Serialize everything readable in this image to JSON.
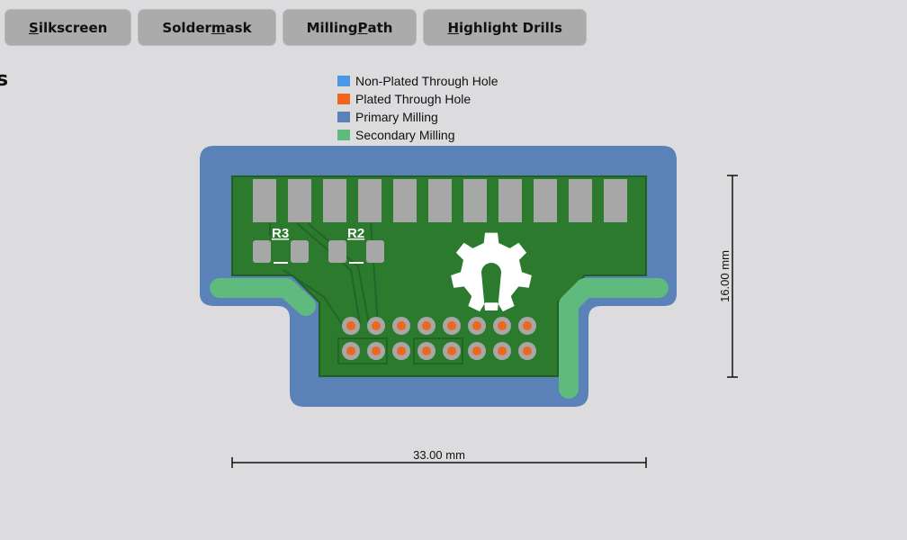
{
  "toolbar": {
    "buttons": [
      {
        "id": "silkscreen",
        "pre": "",
        "ul": "S",
        "post": "ilkscreen"
      },
      {
        "id": "soldermask",
        "pre": "Solder",
        "ul": "m",
        "post": "ask"
      },
      {
        "id": "milling",
        "pre": "Milling ",
        "ul": "P",
        "post": "ath"
      },
      {
        "id": "drills",
        "pre": "",
        "ul": "H",
        "post": "ighlight Drills"
      }
    ]
  },
  "side_title": "s",
  "legend": [
    {
      "label": "Non-Plated Through Hole",
      "color": "#4c96e6"
    },
    {
      "label": "Plated Through Hole",
      "color": "#f0661f"
    },
    {
      "label": "Primary Milling",
      "color": "#5a82b8"
    },
    {
      "label": "Secondary Milling",
      "color": "#5fba7d"
    }
  ],
  "board": {
    "labels": {
      "r3": "R3",
      "r2": "R2"
    },
    "colors": {
      "primary_milling": "#5a82b8",
      "secondary_milling": "#5fba7d",
      "pcb": "#2c7a2e",
      "pad": "#a7a7a7",
      "pth": "#f0661f",
      "silk": "#ffffff"
    }
  },
  "dimensions": {
    "width": "33.00 mm",
    "height": "16.00 mm"
  }
}
